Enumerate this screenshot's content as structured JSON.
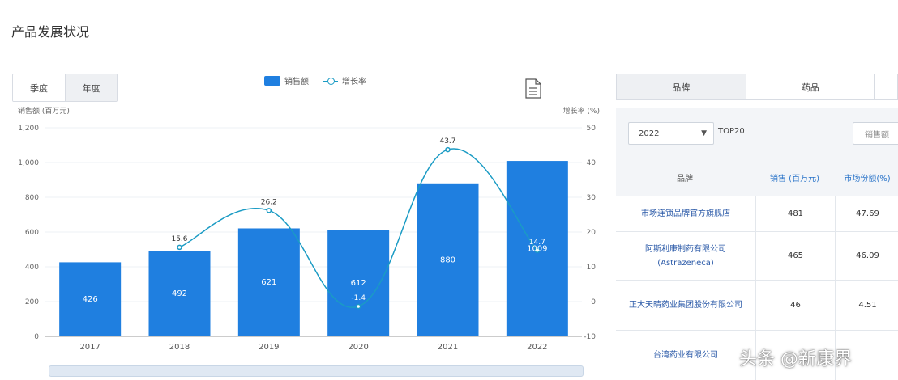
{
  "page": {
    "title": "产品发展状况"
  },
  "period_toggle": {
    "items": [
      "季度",
      "年度"
    ],
    "active": "年度"
  },
  "legend": {
    "bar_label": "销售额",
    "line_label": "增长率"
  },
  "chart_data": {
    "type": "bar",
    "categories": [
      "2017",
      "2018",
      "2019",
      "2020",
      "2021",
      "2022"
    ],
    "series": [
      {
        "name": "销售额",
        "type": "bar",
        "axis": "left",
        "values": [
          426,
          492,
          621,
          612,
          880,
          1009
        ]
      },
      {
        "name": "增长率",
        "type": "line",
        "axis": "right",
        "values": [
          null,
          15.6,
          26.2,
          -1.4,
          43.7,
          14.7
        ]
      }
    ],
    "bar_labels": [
      "426",
      "492",
      "621",
      "612",
      "880",
      "1009"
    ],
    "line_labels": [
      "",
      "15.6",
      "26.2",
      "-1.4",
      "43.7",
      "14.7"
    ],
    "ylabel": "销售额 (百万元)",
    "y2label": "增长率 (%)",
    "ylim": [
      0,
      1200
    ],
    "y2lim": [
      -10,
      50
    ],
    "yticks": [
      "0",
      "200",
      "400",
      "600",
      "800",
      "1,000",
      "1,200"
    ],
    "y2ticks": [
      "-10",
      "0",
      "10",
      "20",
      "30",
      "40",
      "50"
    ],
    "colors": {
      "bar": "#1f7fe0",
      "line": "#1a9bc4"
    },
    "legend_position": "top-center"
  },
  "right_panel": {
    "tabs": [
      "品牌",
      "药品",
      ""
    ],
    "active_tab": "品牌",
    "year_select": "2022",
    "top_label": "TOP20",
    "metric_select": "销售额",
    "columns": [
      "品牌",
      "销售 (百万元)",
      "市场份额(%)"
    ],
    "rows": [
      {
        "brand": "市场连锁品牌官方旗舰店",
        "sales": "481",
        "share": "47.69"
      },
      {
        "brand": "阿斯利康制药有限公司(Astrazeneca)",
        "sales": "465",
        "share": "46.09"
      },
      {
        "brand": "正大天晴药业集团股份有限公司",
        "sales": "46",
        "share": "4.51"
      },
      {
        "brand": "台湾药业有限公司",
        "sales": "",
        "share": ""
      }
    ]
  },
  "watermark": {
    "text": "头条 @新康界"
  }
}
